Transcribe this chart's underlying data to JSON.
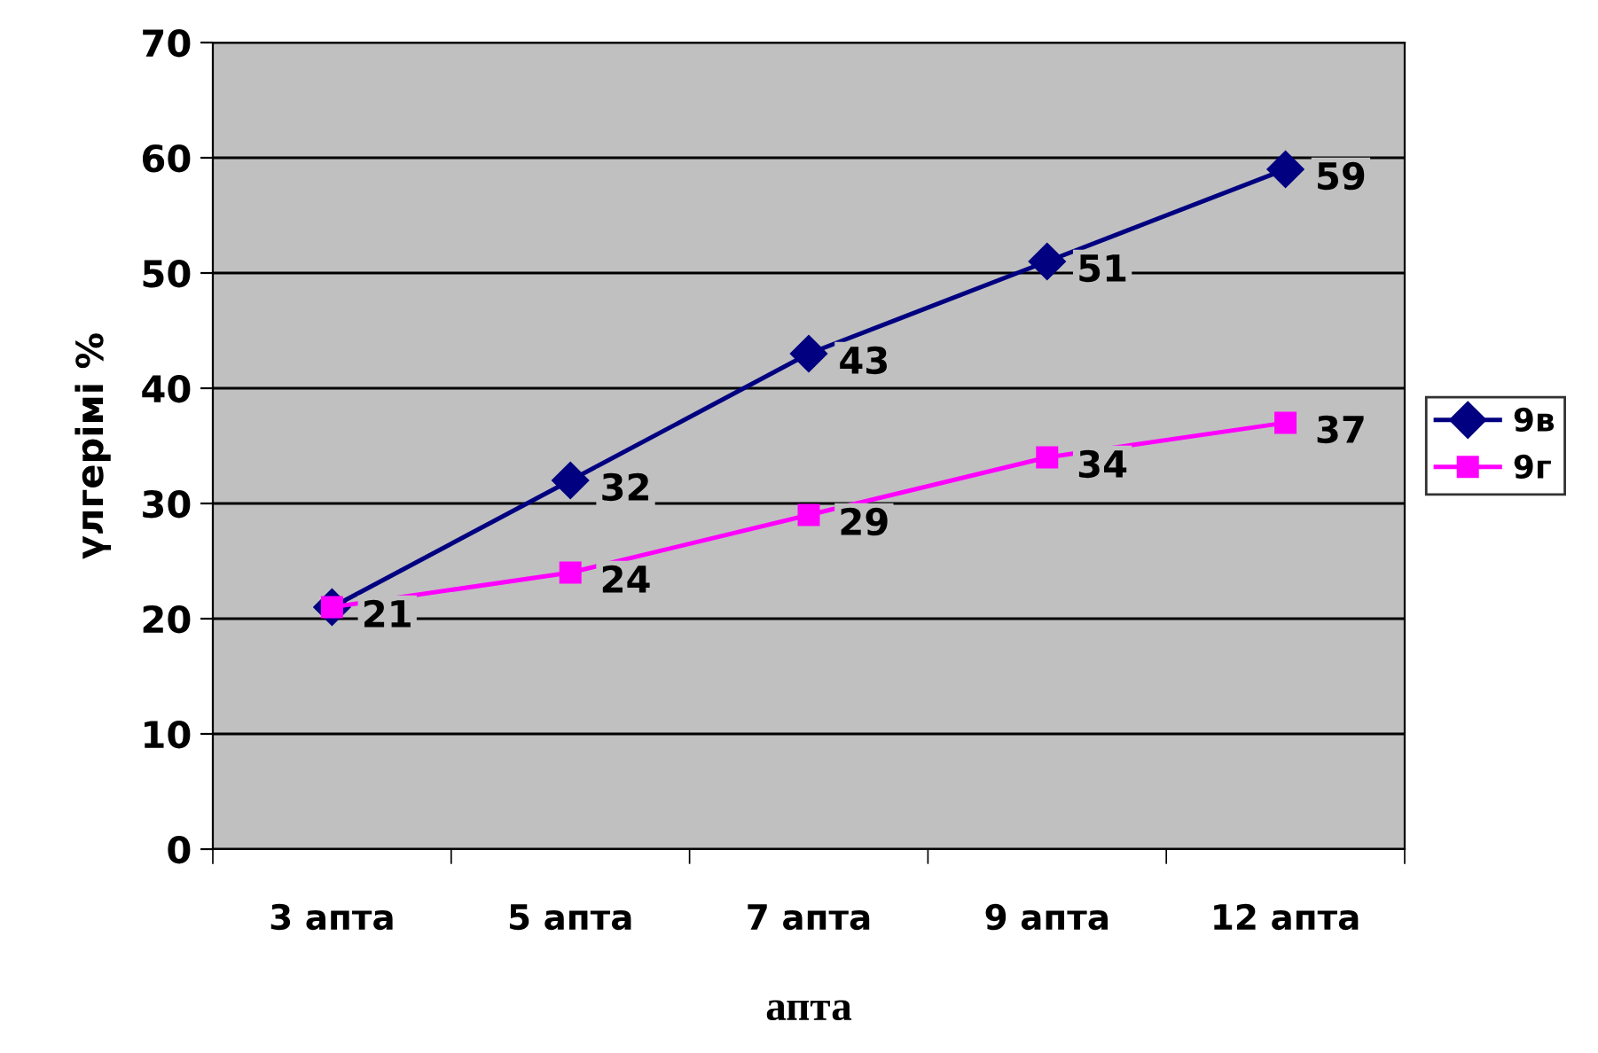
{
  "chart_data": {
    "type": "line",
    "xlabel": "апта",
    "ylabel": "үлгерімі %",
    "categories": [
      "3 апта",
      "5 апта",
      "7 апта",
      "9 апта",
      "12 апта"
    ],
    "series": [
      {
        "name": "9в",
        "color": "#000080",
        "marker": "diamond",
        "values": [
          21,
          32,
          43,
          51,
          59
        ],
        "value_labels": [
          null,
          "32",
          "43",
          "51",
          "59"
        ]
      },
      {
        "name": "9г",
        "color": "#ff00ff",
        "marker": "square",
        "values": [
          21,
          24,
          29,
          34,
          37
        ],
        "value_labels": [
          "21",
          "24",
          "29",
          "34",
          "37"
        ]
      }
    ],
    "ylim": [
      0,
      70
    ],
    "yticks": [
      0,
      10,
      20,
      30,
      40,
      50,
      60,
      70
    ],
    "grid": "y",
    "legend": "right"
  }
}
